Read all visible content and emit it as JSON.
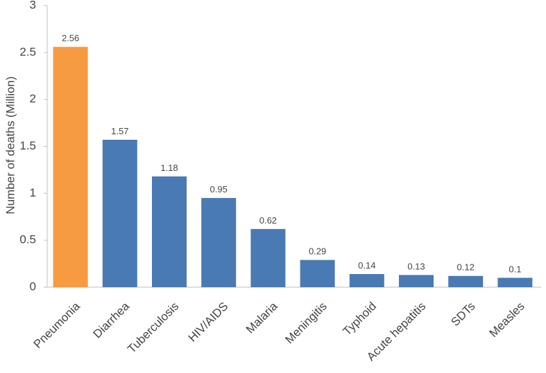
{
  "chart_data": {
    "type": "bar",
    "title": "",
    "xlabel": "",
    "ylabel": "Number of deaths (Million)",
    "ylim": [
      0,
      3
    ],
    "yticks": [
      "0",
      "0.5",
      "1",
      "1.5",
      "2",
      "2.5",
      "3"
    ],
    "grid": false,
    "categories": [
      "Pneumonia",
      "Diarrhea",
      "Tuberculosis",
      "HIV/AIDS",
      "Malaria",
      "Meningitis",
      "Typhoid",
      "Acute hepatitis",
      "SDTs",
      "Measles"
    ],
    "values": [
      2.56,
      1.57,
      1.18,
      0.95,
      0.62,
      0.29,
      0.14,
      0.13,
      0.12,
      0.1
    ],
    "value_labels": [
      "2.56",
      "1.57",
      "1.18",
      "0.95",
      "0.62",
      "0.29",
      "0.14",
      "0.13",
      "0.12",
      "0.1"
    ],
    "highlight_index": 0,
    "colors": {
      "bar": "#4a7ab3",
      "highlight": "#f79b42",
      "axis": "#bfbfbf",
      "text": "#444444"
    }
  }
}
